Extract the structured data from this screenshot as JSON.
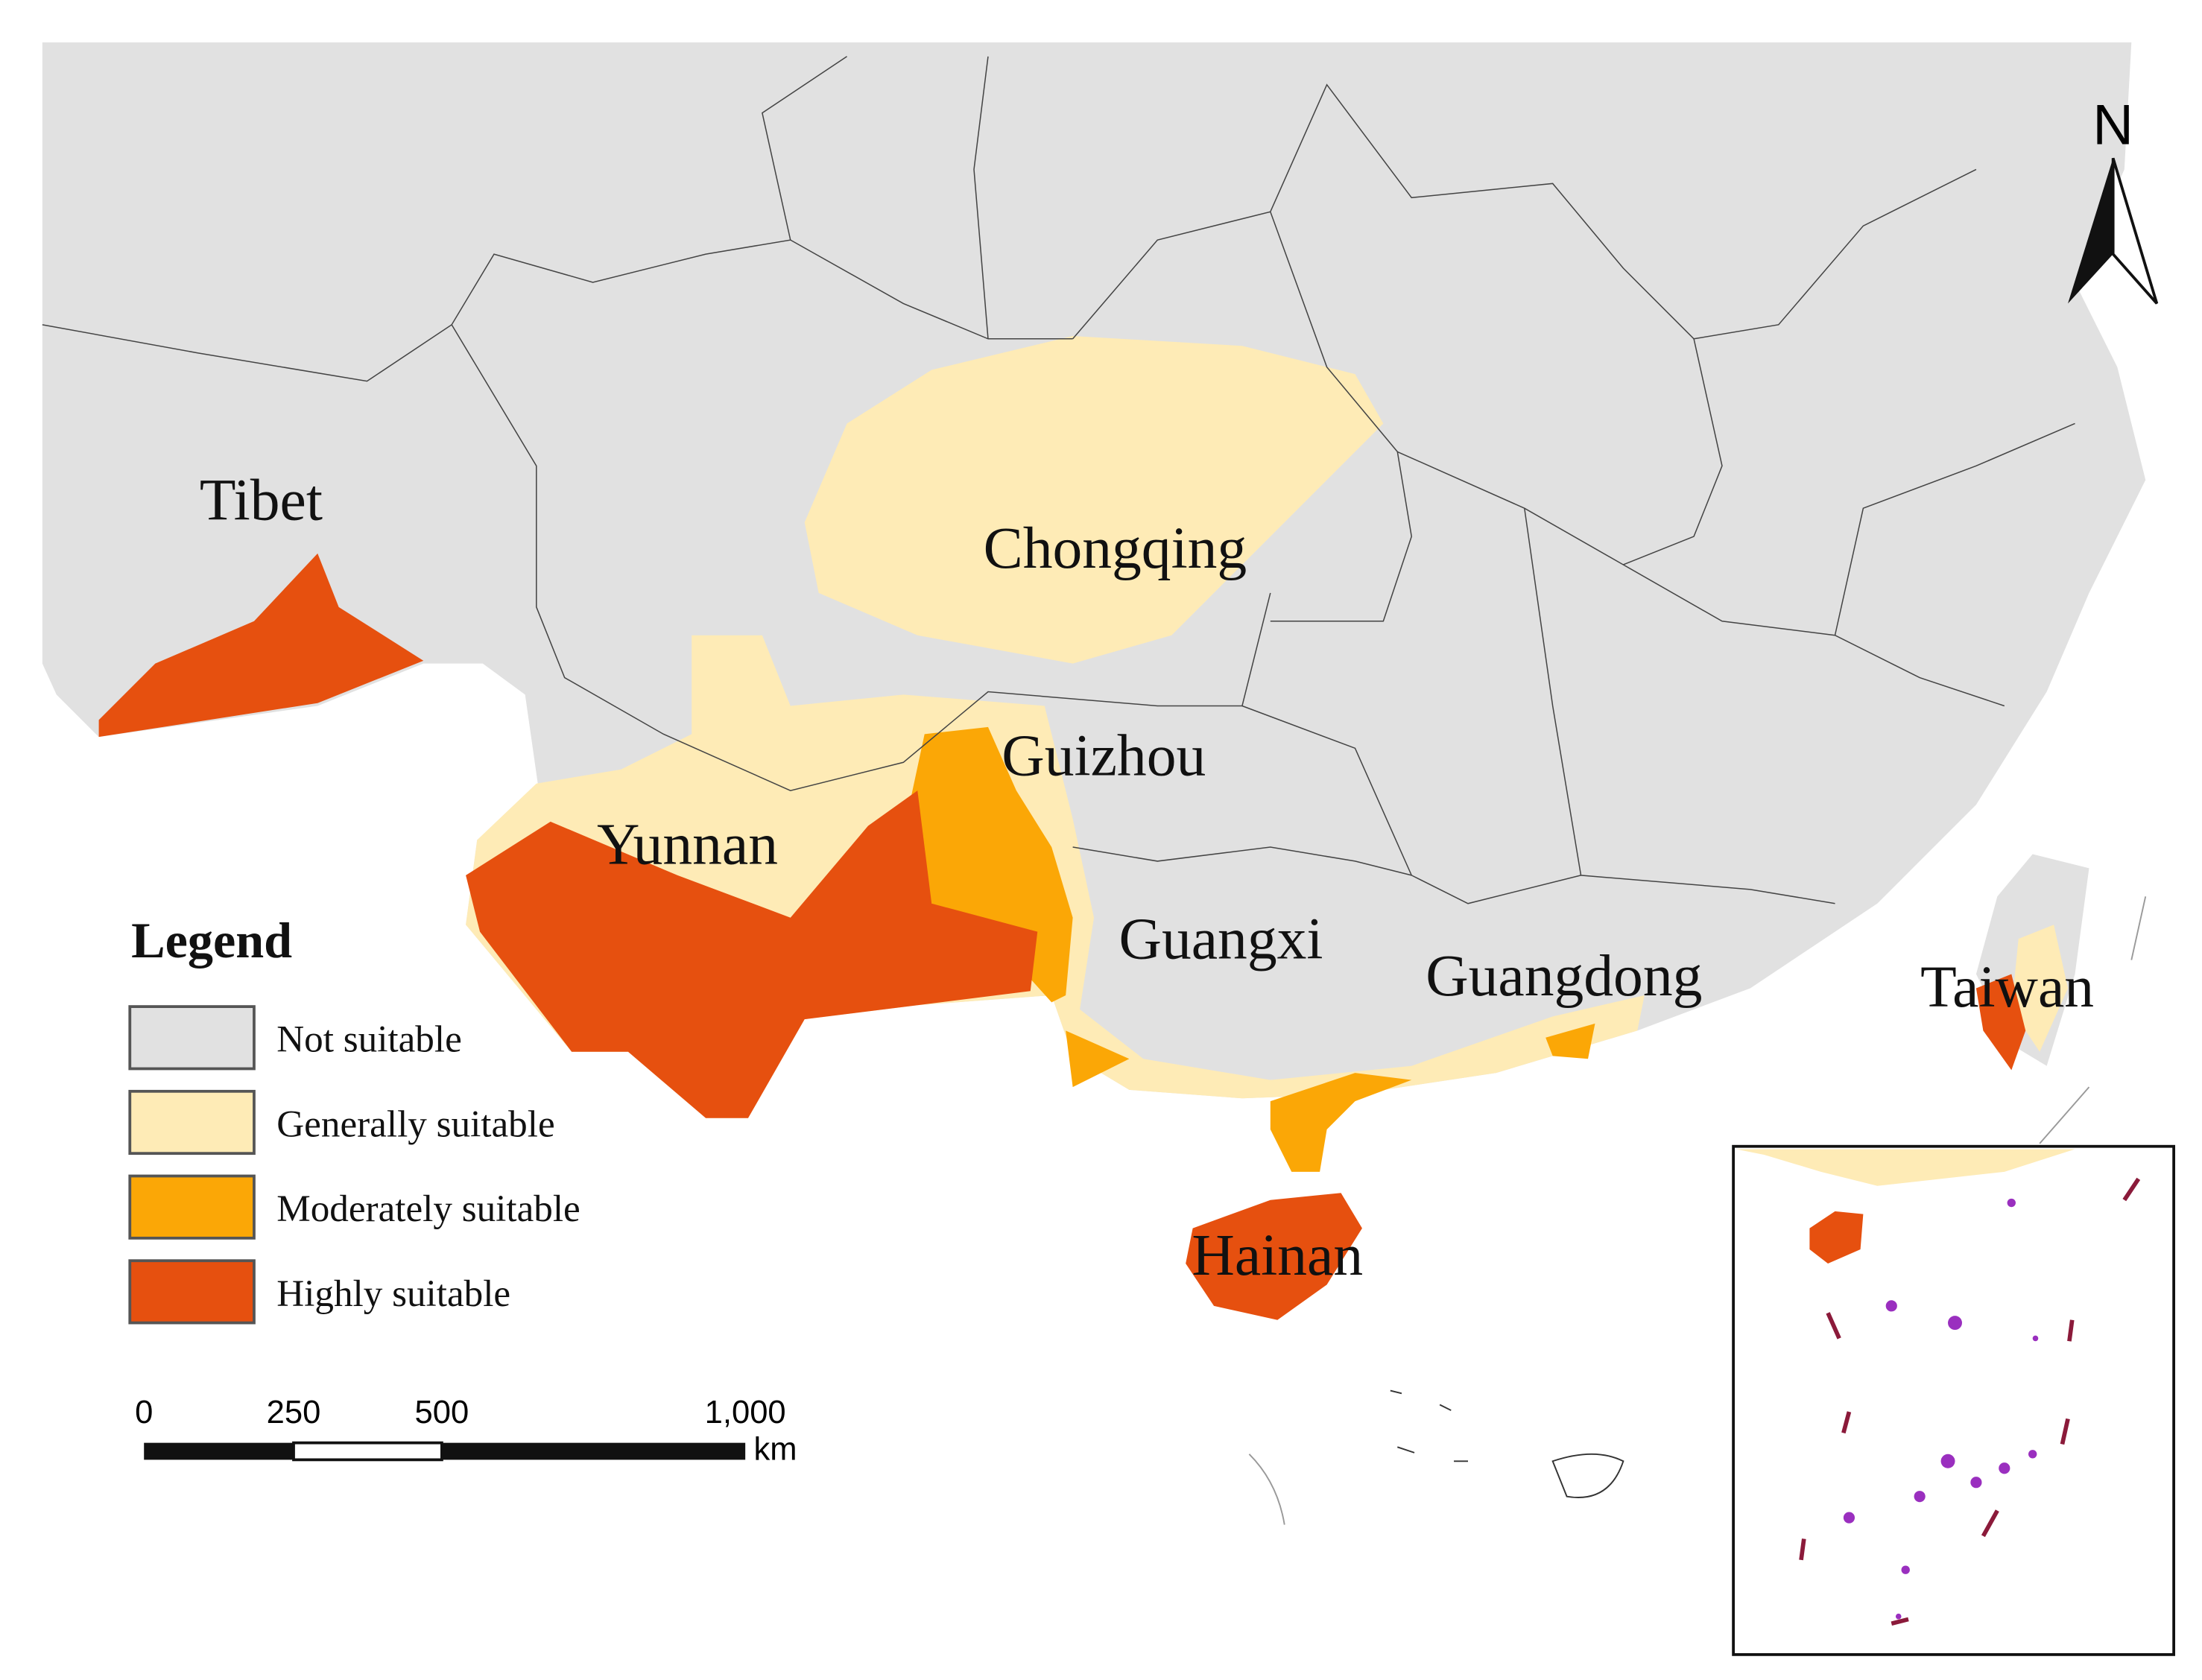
{
  "north_arrow": {
    "label": "N"
  },
  "regions": [
    {
      "label": "Tibet"
    },
    {
      "label": "Chongqing"
    },
    {
      "label": "Guizhou"
    },
    {
      "label": "Yunnan"
    },
    {
      "label": "Guangxi"
    },
    {
      "label": "Guangdong"
    },
    {
      "label": "Taiwan"
    },
    {
      "label": "Hainan"
    }
  ],
  "legend": {
    "title": "Legend",
    "items": [
      {
        "label": "Not suitable",
        "color": "#e1e1e1"
      },
      {
        "label": "Generally suitable",
        "color": "#feebb6"
      },
      {
        "label": "Moderately suitable",
        "color": "#fba706"
      },
      {
        "label": "Highly suitable",
        "color": "#e6500f"
      }
    ]
  },
  "scale_bar": {
    "labels": [
      "0",
      "250",
      "500",
      "1,000"
    ],
    "unit": "km"
  }
}
